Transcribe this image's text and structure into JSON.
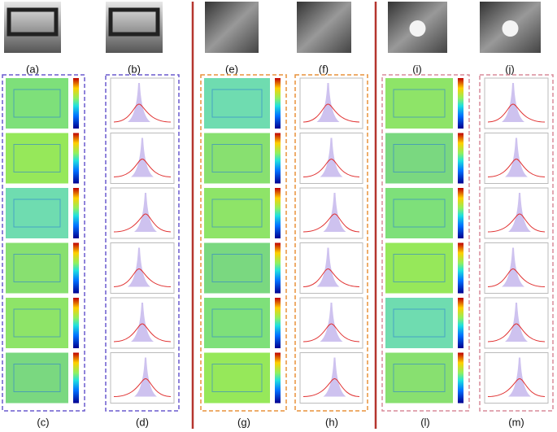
{
  "top_labels": [
    "(a)",
    "(b)",
    "(e)",
    "(f)",
    "(i)",
    "(j)"
  ],
  "bottom_labels": [
    "(c)",
    "(d)",
    "(g)",
    "(h)",
    "(l)",
    "(m)"
  ]
}
